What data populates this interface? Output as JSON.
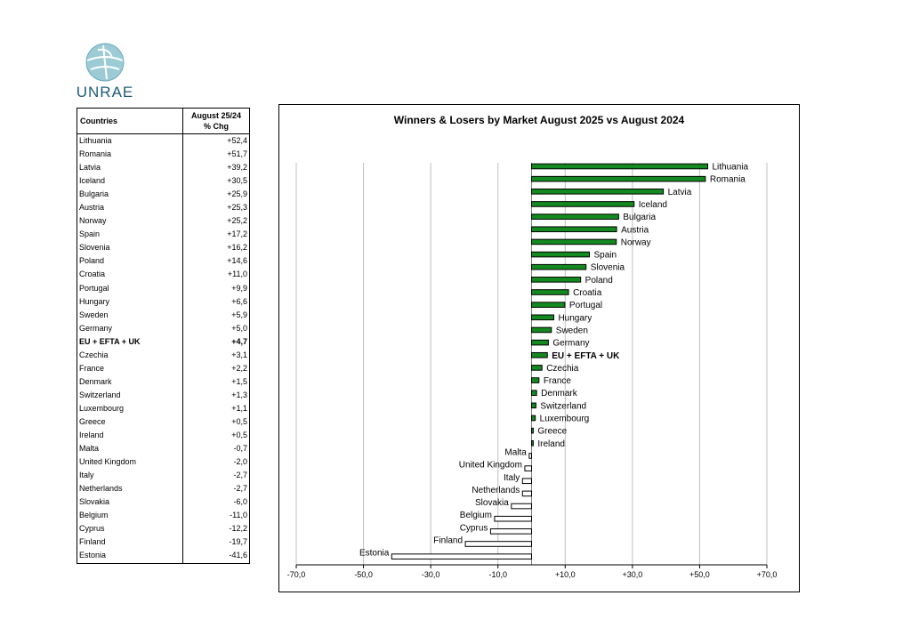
{
  "brand": {
    "logo_text": "UNRAE"
  },
  "table": {
    "header_country": "Countries",
    "header_chg_line1": "August 25/24",
    "header_chg_line2": "% Chg",
    "rows": [
      {
        "country": "Lithuania",
        "chg": "+52,4"
      },
      {
        "country": "Romania",
        "chg": "+51,7"
      },
      {
        "country": "Latvia",
        "chg": "+39,2"
      },
      {
        "country": "Iceland",
        "chg": "+30,5"
      },
      {
        "country": "Bulgaria",
        "chg": "+25,9"
      },
      {
        "country": "Austria",
        "chg": "+25,3"
      },
      {
        "country": "Norway",
        "chg": "+25,2"
      },
      {
        "country": "Spain",
        "chg": "+17,2"
      },
      {
        "country": "Slovenia",
        "chg": "+16,2"
      },
      {
        "country": "Poland",
        "chg": "+14,6"
      },
      {
        "country": "Croatia",
        "chg": "+11,0"
      },
      {
        "country": "Portugal",
        "chg": "+9,9"
      },
      {
        "country": "Hungary",
        "chg": "+6,6"
      },
      {
        "country": "Sweden",
        "chg": "+5,9"
      },
      {
        "country": "Germany",
        "chg": "+5,0"
      },
      {
        "country": "EU + EFTA + UK",
        "chg": "+4,7",
        "bold": true
      },
      {
        "country": "Czechia",
        "chg": "+3,1"
      },
      {
        "country": "France",
        "chg": "+2,2"
      },
      {
        "country": "Denmark",
        "chg": "+1,5"
      },
      {
        "country": "Switzerland",
        "chg": "+1,3"
      },
      {
        "country": "Luxembourg",
        "chg": "+1,1"
      },
      {
        "country": "Greece",
        "chg": "+0,5"
      },
      {
        "country": "Ireland",
        "chg": "+0,5"
      },
      {
        "country": "Malta",
        "chg": "-0,7"
      },
      {
        "country": "United Kingdom",
        "chg": "-2,0"
      },
      {
        "country": "Italy",
        "chg": "-2,7"
      },
      {
        "country": "Netherlands",
        "chg": "-2,7"
      },
      {
        "country": "Slovakia",
        "chg": "-6,0"
      },
      {
        "country": "Belgium",
        "chg": "-11,0"
      },
      {
        "country": "Cyprus",
        "chg": "-12,2"
      },
      {
        "country": "Finland",
        "chg": "-19,7"
      },
      {
        "country": "Estonia",
        "chg": "-41,6"
      }
    ]
  },
  "chart_data": {
    "type": "bar",
    "orientation": "horizontal",
    "title": "Winners & Losers by Market August 2025 vs August 2024",
    "categories": [
      "Lithuania",
      "Romania",
      "Latvia",
      "Iceland",
      "Bulgaria",
      "Austria",
      "Norway",
      "Spain",
      "Slovenia",
      "Poland",
      "Croatia",
      "Portugal",
      "Hungary",
      "Sweden",
      "Germany",
      "EU + EFTA + UK",
      "Czechia",
      "France",
      "Denmark",
      "Switzerland",
      "Luxembourg",
      "Greece",
      "Ireland",
      "Malta",
      "United Kingdom",
      "Italy",
      "Netherlands",
      "Slovakia",
      "Belgium",
      "Cyprus",
      "Finland",
      "Estonia"
    ],
    "values": [
      52.4,
      51.7,
      39.2,
      30.5,
      25.9,
      25.3,
      25.2,
      17.2,
      16.2,
      14.6,
      11.0,
      9.9,
      6.6,
      5.9,
      5.0,
      4.7,
      3.1,
      2.2,
      1.5,
      1.3,
      1.1,
      0.5,
      0.5,
      -0.7,
      -2.0,
      -2.7,
      -2.7,
      -6.0,
      -11.0,
      -12.2,
      -19.7,
      -41.6
    ],
    "bold_categories": [
      "EU + EFTA + UK"
    ],
    "xlim": [
      -70,
      70
    ],
    "xticks": [
      -70,
      -50,
      -30,
      -10,
      10,
      30,
      50,
      70
    ],
    "xtick_labels": [
      "-70,0",
      "-50,0",
      "-30,0",
      "-10,0",
      "+10,0",
      "+30,0",
      "+50,0",
      "+70,0"
    ],
    "grid": true,
    "positive_color": "#138a1f",
    "negative_color": "#ffffff",
    "bar_edge_color": "#000000",
    "grid_color": "#c0c0c0"
  }
}
